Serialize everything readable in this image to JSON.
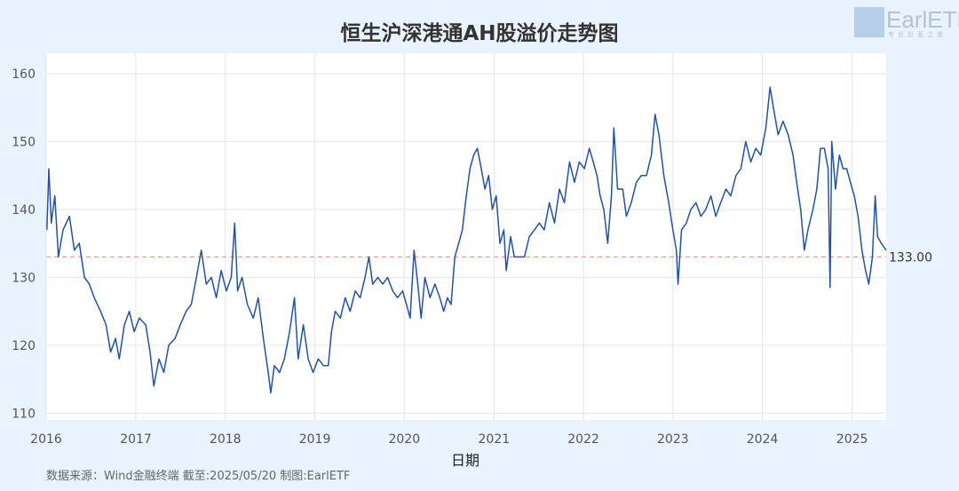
{
  "colors": {
    "background": "#e8f3fd",
    "plot_bg": "#ffffff",
    "line": "#2352a0",
    "reference": "#f4a0a0",
    "text": "#333333"
  },
  "logo": {
    "text": "EarlETF",
    "subtitle": "专业投基之道"
  },
  "footer": {
    "source": "数据来源：Wind金融终端 截至:2025/05/20 制图:EarlETF"
  },
  "chart_data": {
    "type": "line",
    "title": "恒生沪深港通AH股溢价走势图",
    "xlabel": "日期",
    "ylabel": "",
    "ylim": [
      109,
      163
    ],
    "xlim": [
      "2016-01-01",
      "2025-05-20"
    ],
    "yticks": [
      110,
      120,
      130,
      140,
      150,
      160
    ],
    "xticks": [
      "2016",
      "2017",
      "2018",
      "2019",
      "2020",
      "2021",
      "2022",
      "2023",
      "2024",
      "2025"
    ],
    "grid": true,
    "reference_line": {
      "value": 133,
      "label": "133.00"
    },
    "series": [
      {
        "points": [
          [
            "2016-01-04",
            137
          ],
          [
            "2016-01-12",
            146
          ],
          [
            "2016-01-22",
            138
          ],
          [
            "2016-02-05",
            142
          ],
          [
            "2016-02-20",
            133
          ],
          [
            "2016-03-10",
            137
          ],
          [
            "2016-04-05",
            139
          ],
          [
            "2016-04-25",
            134
          ],
          [
            "2016-05-15",
            135
          ],
          [
            "2016-06-05",
            130
          ],
          [
            "2016-06-25",
            129
          ],
          [
            "2016-07-15",
            127
          ],
          [
            "2016-08-10",
            125
          ],
          [
            "2016-09-01",
            123
          ],
          [
            "2016-09-20",
            119
          ],
          [
            "2016-10-10",
            121
          ],
          [
            "2016-10-25",
            118
          ],
          [
            "2016-11-15",
            123
          ],
          [
            "2016-12-05",
            125
          ],
          [
            "2016-12-25",
            122
          ],
          [
            "2017-01-15",
            124
          ],
          [
            "2017-02-10",
            123
          ],
          [
            "2017-02-28",
            119
          ],
          [
            "2017-03-15",
            114
          ],
          [
            "2017-04-05",
            118
          ],
          [
            "2017-04-25",
            116
          ],
          [
            "2017-05-15",
            120
          ],
          [
            "2017-06-10",
            121
          ],
          [
            "2017-07-01",
            123
          ],
          [
            "2017-07-25",
            125
          ],
          [
            "2017-08-15",
            126
          ],
          [
            "2017-09-05",
            130
          ],
          [
            "2017-09-25",
            134
          ],
          [
            "2017-10-15",
            129
          ],
          [
            "2017-11-05",
            130
          ],
          [
            "2017-11-25",
            127
          ],
          [
            "2017-12-15",
            131
          ],
          [
            "2018-01-05",
            128
          ],
          [
            "2018-01-25",
            130
          ],
          [
            "2018-02-08",
            138
          ],
          [
            "2018-02-20",
            128
          ],
          [
            "2018-03-10",
            130
          ],
          [
            "2018-04-01",
            126
          ],
          [
            "2018-04-25",
            124
          ],
          [
            "2018-05-15",
            127
          ],
          [
            "2018-06-05",
            121
          ],
          [
            "2018-06-25",
            116
          ],
          [
            "2018-07-05",
            113
          ],
          [
            "2018-07-20",
            117
          ],
          [
            "2018-08-10",
            116
          ],
          [
            "2018-08-30",
            118
          ],
          [
            "2018-09-20",
            122
          ],
          [
            "2018-10-10",
            127
          ],
          [
            "2018-10-25",
            118
          ],
          [
            "2018-11-15",
            123
          ],
          [
            "2018-12-05",
            118
          ],
          [
            "2018-12-25",
            116
          ],
          [
            "2019-01-15",
            118
          ],
          [
            "2019-02-05",
            117
          ],
          [
            "2019-02-25",
            117
          ],
          [
            "2019-03-10",
            122
          ],
          [
            "2019-03-25",
            125
          ],
          [
            "2019-04-15",
            124
          ],
          [
            "2019-05-05",
            127
          ],
          [
            "2019-05-25",
            125
          ],
          [
            "2019-06-15",
            128
          ],
          [
            "2019-07-05",
            127
          ],
          [
            "2019-07-25",
            130
          ],
          [
            "2019-08-10",
            133
          ],
          [
            "2019-08-25",
            129
          ],
          [
            "2019-09-15",
            130
          ],
          [
            "2019-10-05",
            129
          ],
          [
            "2019-10-25",
            130
          ],
          [
            "2019-11-15",
            128
          ],
          [
            "2019-12-05",
            127
          ],
          [
            "2019-12-25",
            128
          ],
          [
            "2020-01-10",
            126
          ],
          [
            "2020-01-25",
            124
          ],
          [
            "2020-02-10",
            134
          ],
          [
            "2020-02-25",
            129
          ],
          [
            "2020-03-10",
            124
          ],
          [
            "2020-03-25",
            130
          ],
          [
            "2020-04-15",
            127
          ],
          [
            "2020-05-05",
            129
          ],
          [
            "2020-05-25",
            127
          ],
          [
            "2020-06-10",
            125
          ],
          [
            "2020-06-25",
            127
          ],
          [
            "2020-07-10",
            126
          ],
          [
            "2020-07-25",
            133
          ],
          [
            "2020-08-10",
            135
          ],
          [
            "2020-08-25",
            137
          ],
          [
            "2020-09-10",
            142
          ],
          [
            "2020-09-25",
            146
          ],
          [
            "2020-10-10",
            148
          ],
          [
            "2020-10-25",
            149
          ],
          [
            "2020-11-10",
            146
          ],
          [
            "2020-11-25",
            143
          ],
          [
            "2020-12-10",
            145
          ],
          [
            "2020-12-25",
            140
          ],
          [
            "2021-01-10",
            142
          ],
          [
            "2021-01-25",
            135
          ],
          [
            "2021-02-10",
            137
          ],
          [
            "2021-02-20",
            131
          ],
          [
            "2021-03-10",
            136
          ],
          [
            "2021-03-25",
            133
          ],
          [
            "2021-04-15",
            133
          ],
          [
            "2021-05-05",
            133
          ],
          [
            "2021-05-25",
            136
          ],
          [
            "2021-06-15",
            137
          ],
          [
            "2021-07-05",
            138
          ],
          [
            "2021-07-25",
            137
          ],
          [
            "2021-08-15",
            141
          ],
          [
            "2021-09-05",
            138
          ],
          [
            "2021-09-25",
            143
          ],
          [
            "2021-10-15",
            141
          ],
          [
            "2021-11-05",
            147
          ],
          [
            "2021-11-25",
            144
          ],
          [
            "2021-12-15",
            147
          ],
          [
            "2022-01-05",
            146
          ],
          [
            "2022-01-25",
            149
          ],
          [
            "2022-02-10",
            147
          ],
          [
            "2022-02-25",
            145
          ],
          [
            "2022-03-10",
            142
          ],
          [
            "2022-03-25",
            140
          ],
          [
            "2022-04-10",
            135
          ],
          [
            "2022-04-25",
            142
          ],
          [
            "2022-05-05",
            152
          ],
          [
            "2022-05-20",
            143
          ],
          [
            "2022-06-10",
            143
          ],
          [
            "2022-06-25",
            139
          ],
          [
            "2022-07-15",
            141
          ],
          [
            "2022-08-05",
            144
          ],
          [
            "2022-08-25",
            145
          ],
          [
            "2022-09-15",
            145
          ],
          [
            "2022-10-05",
            148
          ],
          [
            "2022-10-20",
            154
          ],
          [
            "2022-11-05",
            151
          ],
          [
            "2022-11-25",
            145
          ],
          [
            "2022-12-15",
            141
          ],
          [
            "2023-01-01",
            137
          ],
          [
            "2023-01-15",
            134
          ],
          [
            "2023-01-22",
            129
          ],
          [
            "2023-02-05",
            137
          ],
          [
            "2023-02-25",
            138
          ],
          [
            "2023-03-15",
            140
          ],
          [
            "2023-04-05",
            141
          ],
          [
            "2023-04-25",
            139
          ],
          [
            "2023-05-15",
            140
          ],
          [
            "2023-06-05",
            142
          ],
          [
            "2023-06-25",
            139
          ],
          [
            "2023-07-15",
            141
          ],
          [
            "2023-08-05",
            143
          ],
          [
            "2023-08-25",
            142
          ],
          [
            "2023-09-15",
            145
          ],
          [
            "2023-10-05",
            146
          ],
          [
            "2023-10-25",
            150
          ],
          [
            "2023-11-15",
            147
          ],
          [
            "2023-12-05",
            149
          ],
          [
            "2023-12-25",
            148
          ],
          [
            "2024-01-15",
            152
          ],
          [
            "2024-02-01",
            158
          ],
          [
            "2024-02-15",
            155
          ],
          [
            "2024-03-05",
            151
          ],
          [
            "2024-03-25",
            153
          ],
          [
            "2024-04-15",
            151
          ],
          [
            "2024-05-05",
            148
          ],
          [
            "2024-05-20",
            144
          ],
          [
            "2024-06-05",
            140
          ],
          [
            "2024-06-20",
            134
          ],
          [
            "2024-07-05",
            137
          ],
          [
            "2024-07-25",
            140
          ],
          [
            "2024-08-10",
            143
          ],
          [
            "2024-08-25",
            149
          ],
          [
            "2024-09-10",
            149
          ],
          [
            "2024-09-25",
            146
          ],
          [
            "2024-10-03",
            128.5
          ],
          [
            "2024-10-10",
            150
          ],
          [
            "2024-10-25",
            143
          ],
          [
            "2024-11-10",
            148
          ],
          [
            "2024-11-25",
            146
          ],
          [
            "2024-12-10",
            146
          ],
          [
            "2024-12-25",
            144
          ],
          [
            "2025-01-10",
            142
          ],
          [
            "2025-01-25",
            139
          ],
          [
            "2025-02-10",
            134
          ],
          [
            "2025-02-25",
            131
          ],
          [
            "2025-03-10",
            129
          ],
          [
            "2025-03-25",
            133
          ],
          [
            "2025-04-05",
            142
          ],
          [
            "2025-04-15",
            136
          ],
          [
            "2025-04-30",
            135
          ],
          [
            "2025-05-20",
            134
          ]
        ]
      }
    ]
  }
}
